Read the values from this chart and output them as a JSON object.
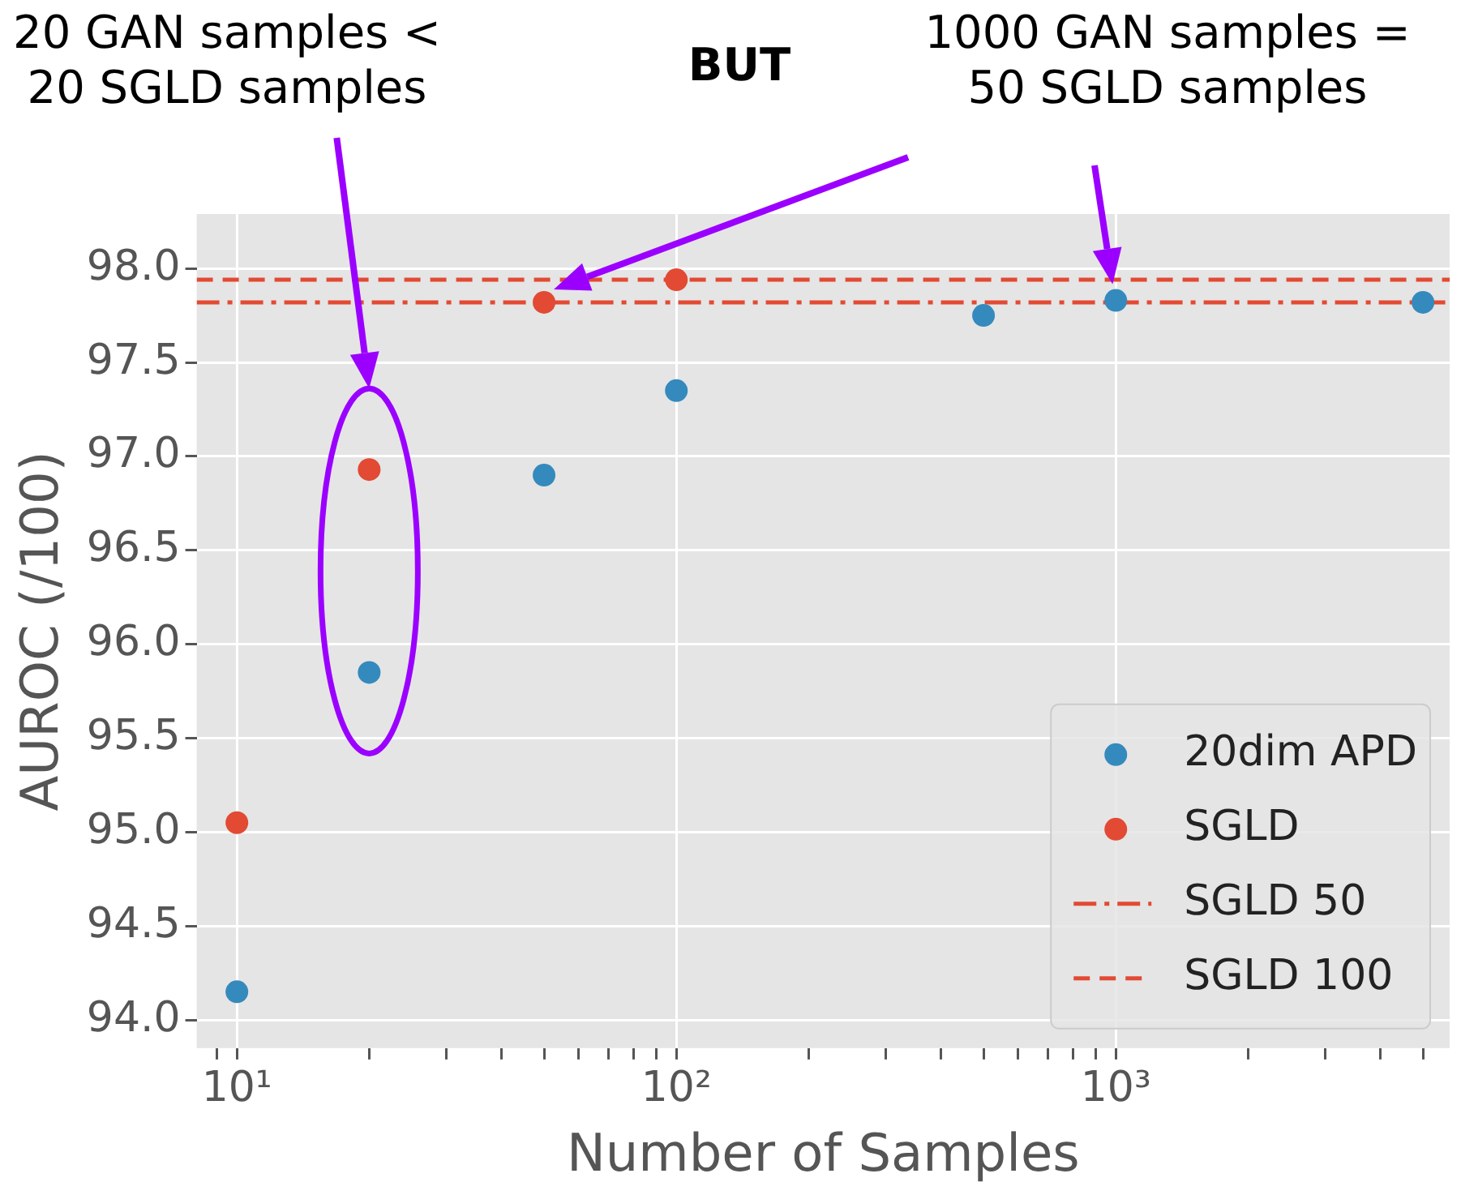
{
  "chart_data": {
    "type": "scatter",
    "xlabel": "Number of Samples",
    "ylabel": "AUROC (/100)",
    "annotations": [
      "20 GAN samples <\n20 SGLD samples",
      "BUT",
      "1000 GAN samples =\n50 SGLD samples"
    ],
    "x": [
      10,
      20,
      50,
      100,
      500,
      1000,
      5000
    ],
    "series": [
      {
        "name": "20dim APD",
        "color": "#348abd",
        "values": [
          94.15,
          95.85,
          96.9,
          97.35,
          97.75,
          97.83,
          97.82
        ]
      },
      {
        "name": "SGLD",
        "color": "#e24a33",
        "x": [
          10,
          20,
          50,
          100
        ],
        "values": [
          95.05,
          96.93,
          97.82,
          97.94
        ]
      }
    ],
    "ref_lines": [
      {
        "axis": "y",
        "value": 97.82,
        "label": "SGLD 50",
        "color": "#e24a33",
        "line_style": "dashdot"
      },
      {
        "axis": "y",
        "value": 97.94,
        "label": "SGLD 100",
        "color": "#e24a33",
        "line_style": "dashed"
      }
    ],
    "log": "x",
    "xlim": [
      8.1,
      5750
    ],
    "ylim": [
      93.85,
      98.29
    ],
    "xticks": [
      {
        "value": 9,
        "label": null
      },
      {
        "value": 10,
        "label": "10¹"
      },
      {
        "value": 20,
        "label": null
      },
      {
        "value": 30,
        "label": null
      },
      {
        "value": 40,
        "label": null
      },
      {
        "value": 50,
        "label": null
      },
      {
        "value": 60,
        "label": null
      },
      {
        "value": 70,
        "label": null
      },
      {
        "value": 80,
        "label": null
      },
      {
        "value": 90,
        "label": null
      },
      {
        "value": 100,
        "label": "10²"
      },
      {
        "value": 200,
        "label": null
      },
      {
        "value": 300,
        "label": null
      },
      {
        "value": 400,
        "label": null
      },
      {
        "value": 500,
        "label": null
      },
      {
        "value": 600,
        "label": null
      },
      {
        "value": 700,
        "label": null
      },
      {
        "value": 800,
        "label": null
      },
      {
        "value": 900,
        "label": null
      },
      {
        "value": 1000,
        "label": "10³"
      },
      {
        "value": 2000,
        "label": null
      },
      {
        "value": 3000,
        "label": null
      },
      {
        "value": 4000,
        "label": null
      },
      {
        "value": 5000,
        "label": null
      }
    ],
    "yticks": [
      {
        "value": 94,
        "label": "94.0"
      },
      {
        "value": 94.5,
        "label": "94.5"
      },
      {
        "value": 95,
        "label": "95.0"
      },
      {
        "value": 95.5,
        "label": "95.5"
      },
      {
        "value": 96,
        "label": "96.0"
      },
      {
        "value": 96.5,
        "label": "96.5"
      },
      {
        "value": 97,
        "label": "97.0"
      },
      {
        "value": 97.5,
        "label": "97.5"
      },
      {
        "value": 98,
        "label": "98.0"
      }
    ],
    "grid": true,
    "legend": "bottom right",
    "marker": "circle"
  }
}
